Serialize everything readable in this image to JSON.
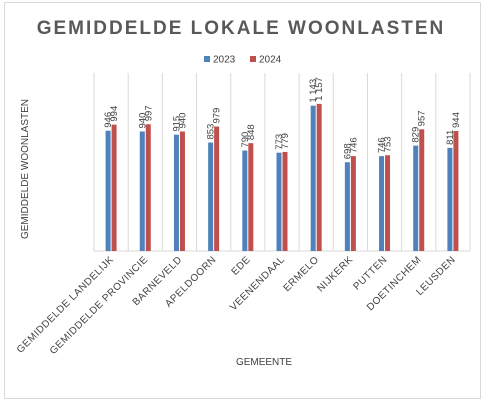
{
  "chart_data": {
    "type": "bar",
    "title": "GEMIDDELDE LOKALE WOONLASTEN",
    "xlabel": "GEMEENTE",
    "ylabel": "GEMIDDELDE WOONLASTEN",
    "categories": [
      "GEMIDDELDE LANDELIJK",
      "GEMIDDELDE PROVINCIE",
      "BARNEVELD",
      "APELDOORN",
      "EDE",
      "VEENENDAAL",
      "ERMELO",
      "NIJKERK",
      "PUTTEN",
      "DOETINCHEM",
      "LEUSDEN"
    ],
    "series": [
      {
        "name": "2023",
        "color": "#4f81bd",
        "values": [
          946,
          940,
          915,
          853,
          790,
          773,
          1143,
          698,
          746,
          829,
          811
        ],
        "labels": [
          "946",
          "940",
          "915",
          "853",
          "790",
          "773",
          "1 143",
          "698",
          "746",
          "829",
          "811"
        ]
      },
      {
        "name": "2024",
        "color": "#c0504d",
        "values": [
          994,
          997,
          940,
          979,
          848,
          779,
          1157,
          746,
          753,
          957,
          944
        ],
        "labels": [
          "994",
          "997",
          "940",
          "979",
          "848",
          "779",
          "1 157",
          "746",
          "753",
          "957",
          "944"
        ]
      }
    ],
    "ylim": [
      0,
      1400
    ],
    "grid": "vertical category separators",
    "legend": "top-center"
  }
}
